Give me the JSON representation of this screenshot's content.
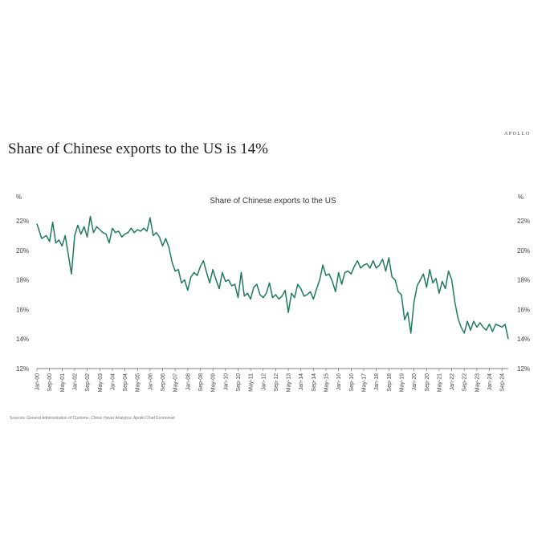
{
  "brand": "APOLLO",
  "headline": "Share of Chinese exports to the US is 14%",
  "source": "Sources: General Administration of Customs, China; Haver Analytics; Apollo Chief Economist",
  "chart_data": {
    "type": "line",
    "title": "Share of Chinese exports to the US",
    "ylabel_left": "%",
    "ylabel_right": "%",
    "ylim": [
      12,
      23
    ],
    "yticks": [
      "12%",
      "14%",
      "16%",
      "18%",
      "20%",
      "22%"
    ],
    "xticks": [
      "Jan-00",
      "Sep-00",
      "May-01",
      "Jan-02",
      "Sep-02",
      "May-03",
      "Jan-04",
      "Sep-04",
      "May-05",
      "Jan-06",
      "Sep-06",
      "May-07",
      "Jan-08",
      "Sep-08",
      "May-09",
      "Jan-10",
      "Sep-10",
      "May-11",
      "Jan-12",
      "Sep-12",
      "May-13",
      "Jan-14",
      "Sep-14",
      "May-15",
      "Jan-16",
      "Sep-16",
      "May-17",
      "Jan-18",
      "Sep-18",
      "May-19",
      "Jan-20",
      "Sep-20",
      "May-21",
      "Jan-22",
      "Sep-22",
      "May-23",
      "Jan-24",
      "Sep-24"
    ],
    "series": [
      {
        "color": "#1f7a5c",
        "x": [
          "Jan-00",
          "Apr-00",
          "Jul-00",
          "Sep-00",
          "Nov-00",
          "Jan-01",
          "Mar-01",
          "May-01",
          "Jul-01",
          "Sep-01",
          "Nov-01",
          "Jan-02",
          "Mar-02",
          "May-02",
          "Jul-02",
          "Sep-02",
          "Nov-02",
          "Jan-03",
          "Mar-03",
          "May-03",
          "Jul-03",
          "Sep-03",
          "Nov-03",
          "Jan-04",
          "Mar-04",
          "May-04",
          "Jul-04",
          "Sep-04",
          "Nov-04",
          "Jan-05",
          "Mar-05",
          "May-05",
          "Jul-05",
          "Sep-05",
          "Nov-05",
          "Jan-06",
          "Mar-06",
          "May-06",
          "Jul-06",
          "Sep-06",
          "Nov-06",
          "Jan-07",
          "Mar-07",
          "May-07",
          "Jul-07",
          "Sep-07",
          "Nov-07",
          "Jan-08",
          "Mar-08",
          "May-08",
          "Jul-08",
          "Sep-08",
          "Nov-08",
          "Jan-09",
          "Mar-09",
          "May-09",
          "Jul-09",
          "Sep-09",
          "Nov-09",
          "Jan-10",
          "Mar-10",
          "May-10",
          "Jul-10",
          "Sep-10",
          "Nov-10",
          "Jan-11",
          "Mar-11",
          "May-11",
          "Jul-11",
          "Sep-11",
          "Nov-11",
          "Jan-12",
          "Mar-12",
          "May-12",
          "Jul-12",
          "Sep-12",
          "Nov-12",
          "Jan-13",
          "Mar-13",
          "May-13",
          "Jul-13",
          "Sep-13",
          "Nov-13",
          "Jan-14",
          "Mar-14",
          "May-14",
          "Jul-14",
          "Sep-14",
          "Nov-14",
          "Jan-15",
          "Mar-15",
          "May-15",
          "Jul-15",
          "Sep-15",
          "Nov-15",
          "Jan-16",
          "Mar-16",
          "May-16",
          "Jul-16",
          "Sep-16",
          "Nov-16",
          "Jan-17",
          "Mar-17",
          "May-17",
          "Jul-17",
          "Sep-17",
          "Nov-17",
          "Jan-18",
          "Mar-18",
          "May-18",
          "Jul-18",
          "Sep-18",
          "Nov-18",
          "Jan-19",
          "Mar-19",
          "May-19",
          "Jul-19",
          "Sep-19",
          "Nov-19",
          "Jan-20",
          "Mar-20",
          "May-20",
          "Jul-20",
          "Sep-20",
          "Nov-20",
          "Jan-21",
          "Mar-21",
          "May-21",
          "Jul-21",
          "Sep-21",
          "Nov-21",
          "Jan-22",
          "Mar-22",
          "May-22",
          "Jul-22",
          "Sep-22",
          "Nov-22",
          "Jan-23",
          "Mar-23",
          "May-23",
          "Jul-23",
          "Sep-23",
          "Nov-23",
          "Jan-24",
          "Mar-24",
          "May-24",
          "Jul-24",
          "Sep-24",
          "Nov-24",
          "Jan-25"
        ],
        "y": [
          21.8,
          20.8,
          21.0,
          20.6,
          21.9,
          20.5,
          20.7,
          20.3,
          21.0,
          19.7,
          18.4,
          21.0,
          21.7,
          21.1,
          21.6,
          20.9,
          22.3,
          21.2,
          21.6,
          21.4,
          21.2,
          21.1,
          20.5,
          21.5,
          21.2,
          21.3,
          20.9,
          21.1,
          21.2,
          21.5,
          21.2,
          21.4,
          21.3,
          21.5,
          21.3,
          22.2,
          21.0,
          21.2,
          20.9,
          20.3,
          20.8,
          20.2,
          19.2,
          18.6,
          18.7,
          17.8,
          18.0,
          17.3,
          18.2,
          18.5,
          18.3,
          18.9,
          19.3,
          18.5,
          17.8,
          18.7,
          18.0,
          17.4,
          18.5,
          17.9,
          18.0,
          17.6,
          17.7,
          16.8,
          18.5,
          16.9,
          17.1,
          16.7,
          17.5,
          17.7,
          17.0,
          16.8,
          17.1,
          17.8,
          16.8,
          17.0,
          16.7,
          16.9,
          17.3,
          15.8,
          17.1,
          16.8,
          17.7,
          17.4,
          16.9,
          17.0,
          17.2,
          16.7,
          17.4,
          18.0,
          19.0,
          18.3,
          18.4,
          17.9,
          17.2,
          18.5,
          17.7,
          18.5,
          18.6,
          18.4,
          18.9,
          19.3,
          18.8,
          19.0,
          19.1,
          18.8,
          19.3,
          18.8,
          19.0,
          19.4,
          18.6,
          19.5,
          18.2,
          18.0,
          17.2,
          17.0,
          15.3,
          15.8,
          14.4,
          16.5,
          17.6,
          18.0,
          18.4,
          17.5,
          18.7,
          17.8,
          18.1,
          17.1,
          17.9,
          17.4,
          18.6,
          18.0,
          16.5,
          15.4,
          14.8,
          14.4,
          15.2,
          14.6,
          15.2,
          14.8,
          15.1,
          14.8,
          14.6,
          15.0,
          14.5,
          15.0,
          14.9,
          14.8,
          15.0,
          14.0
        ]
      }
    ]
  }
}
